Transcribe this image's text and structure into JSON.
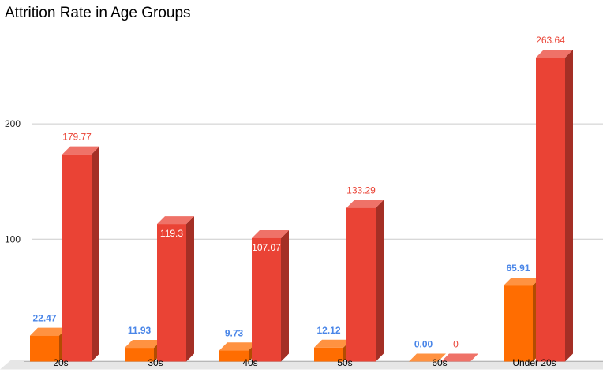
{
  "chart_data": {
    "type": "bar",
    "title": "Attrition Rate in Age Groups",
    "xlabel": "",
    "ylabel": "",
    "categories": [
      "20s",
      "30s",
      "40s",
      "50s",
      "60s",
      "Under 20s"
    ],
    "series": [
      {
        "values": [
          22.47,
          11.93,
          9.73,
          12.12,
          0.0,
          65.91
        ],
        "labels": [
          "22.47",
          "11.93",
          "9.73",
          "12.12",
          "0.00",
          "65.91"
        ],
        "color": "#ff6d01",
        "label_color": "#4a86e8"
      },
      {
        "values": [
          179.77,
          119.3,
          107.07,
          133.29,
          0,
          263.64
        ],
        "labels": [
          "179.77",
          "119.3",
          "107.07",
          "133.29",
          "0",
          "263.64"
        ],
        "color": "#ea4335",
        "label_color": "#ea4335"
      }
    ],
    "y_ticks": [
      "100",
      "200"
    ],
    "y_tick_values": [
      100,
      200
    ],
    "ylim": [
      0,
      270
    ],
    "grid": true,
    "legend": "none",
    "style": "3d-columns"
  }
}
